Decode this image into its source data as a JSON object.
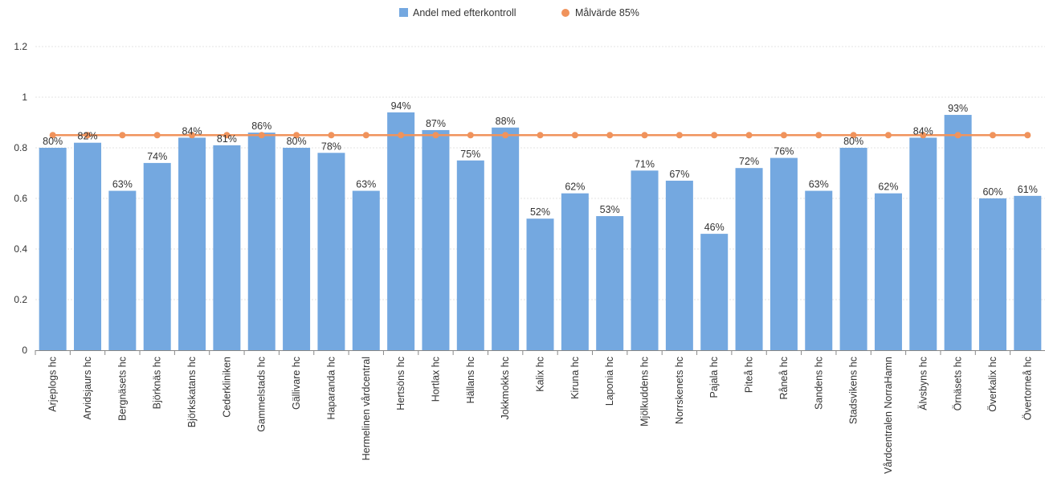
{
  "chart_data": {
    "type": "bar",
    "categories": [
      "Arjeplogs hc",
      "Arvidsjaurs hc",
      "Bergnäsets hc",
      "Björknäs hc",
      "Björkskatans hc",
      "Cederkliniken",
      "Gammelstads hc",
      "Gällivare hc",
      "Haparanda hc",
      "Hermelinen vårdcentral",
      "Hertsöns hc",
      "Hortlax hc",
      "Hällans hc",
      "Jokkmokks hc",
      "Kalix hc",
      "Kiruna hc",
      "Laponia hc",
      "Mjölkuddens hc",
      "Norrskenets hc",
      "Pajala hc",
      "Piteå hc",
      "Råneå hc",
      "Sandens hc",
      "Stadsvikens hc",
      "Vårdcentralen NorraHamn",
      "Älvsbyns hc",
      "Örnäsets hc",
      "Överkalix hc",
      "Övertorneå hc"
    ],
    "series": [
      {
        "name": "Andel med efterkontroll",
        "type": "bar",
        "color": "#74a8e0",
        "values": [
          0.8,
          0.82,
          0.63,
          0.74,
          0.84,
          0.81,
          0.86,
          0.8,
          0.78,
          0.63,
          0.94,
          0.87,
          0.75,
          0.88,
          0.52,
          0.62,
          0.53,
          0.71,
          0.67,
          0.46,
          0.72,
          0.76,
          0.63,
          0.8,
          0.62,
          0.84,
          0.93,
          0.6,
          0.61
        ],
        "labels": [
          "80%",
          "82%",
          "63%",
          "74%",
          "84%",
          "81%",
          "86%",
          "80%",
          "78%",
          "63%",
          "94%",
          "87%",
          "75%",
          "88%",
          "52%",
          "62%",
          "53%",
          "71%",
          "67%",
          "46%",
          "72%",
          "76%",
          "63%",
          "80%",
          "62%",
          "84%",
          "93%",
          "60%",
          "61%"
        ]
      },
      {
        "name": "Målvärde 85%",
        "type": "line",
        "color": "#f0935c",
        "values": [
          0.85,
          0.85,
          0.85,
          0.85,
          0.85,
          0.85,
          0.85,
          0.85,
          0.85,
          0.85,
          0.85,
          0.85,
          0.85,
          0.85,
          0.85,
          0.85,
          0.85,
          0.85,
          0.85,
          0.85,
          0.85,
          0.85,
          0.85,
          0.85,
          0.85,
          0.85,
          0.85,
          0.85,
          0.85
        ]
      }
    ],
    "yticks": [
      "0",
      "0.2",
      "0.4",
      "0.6",
      "0.8",
      "1",
      "1.2"
    ],
    "ylim": [
      0,
      1.2
    ],
    "grid": true,
    "legend": "top-center"
  }
}
